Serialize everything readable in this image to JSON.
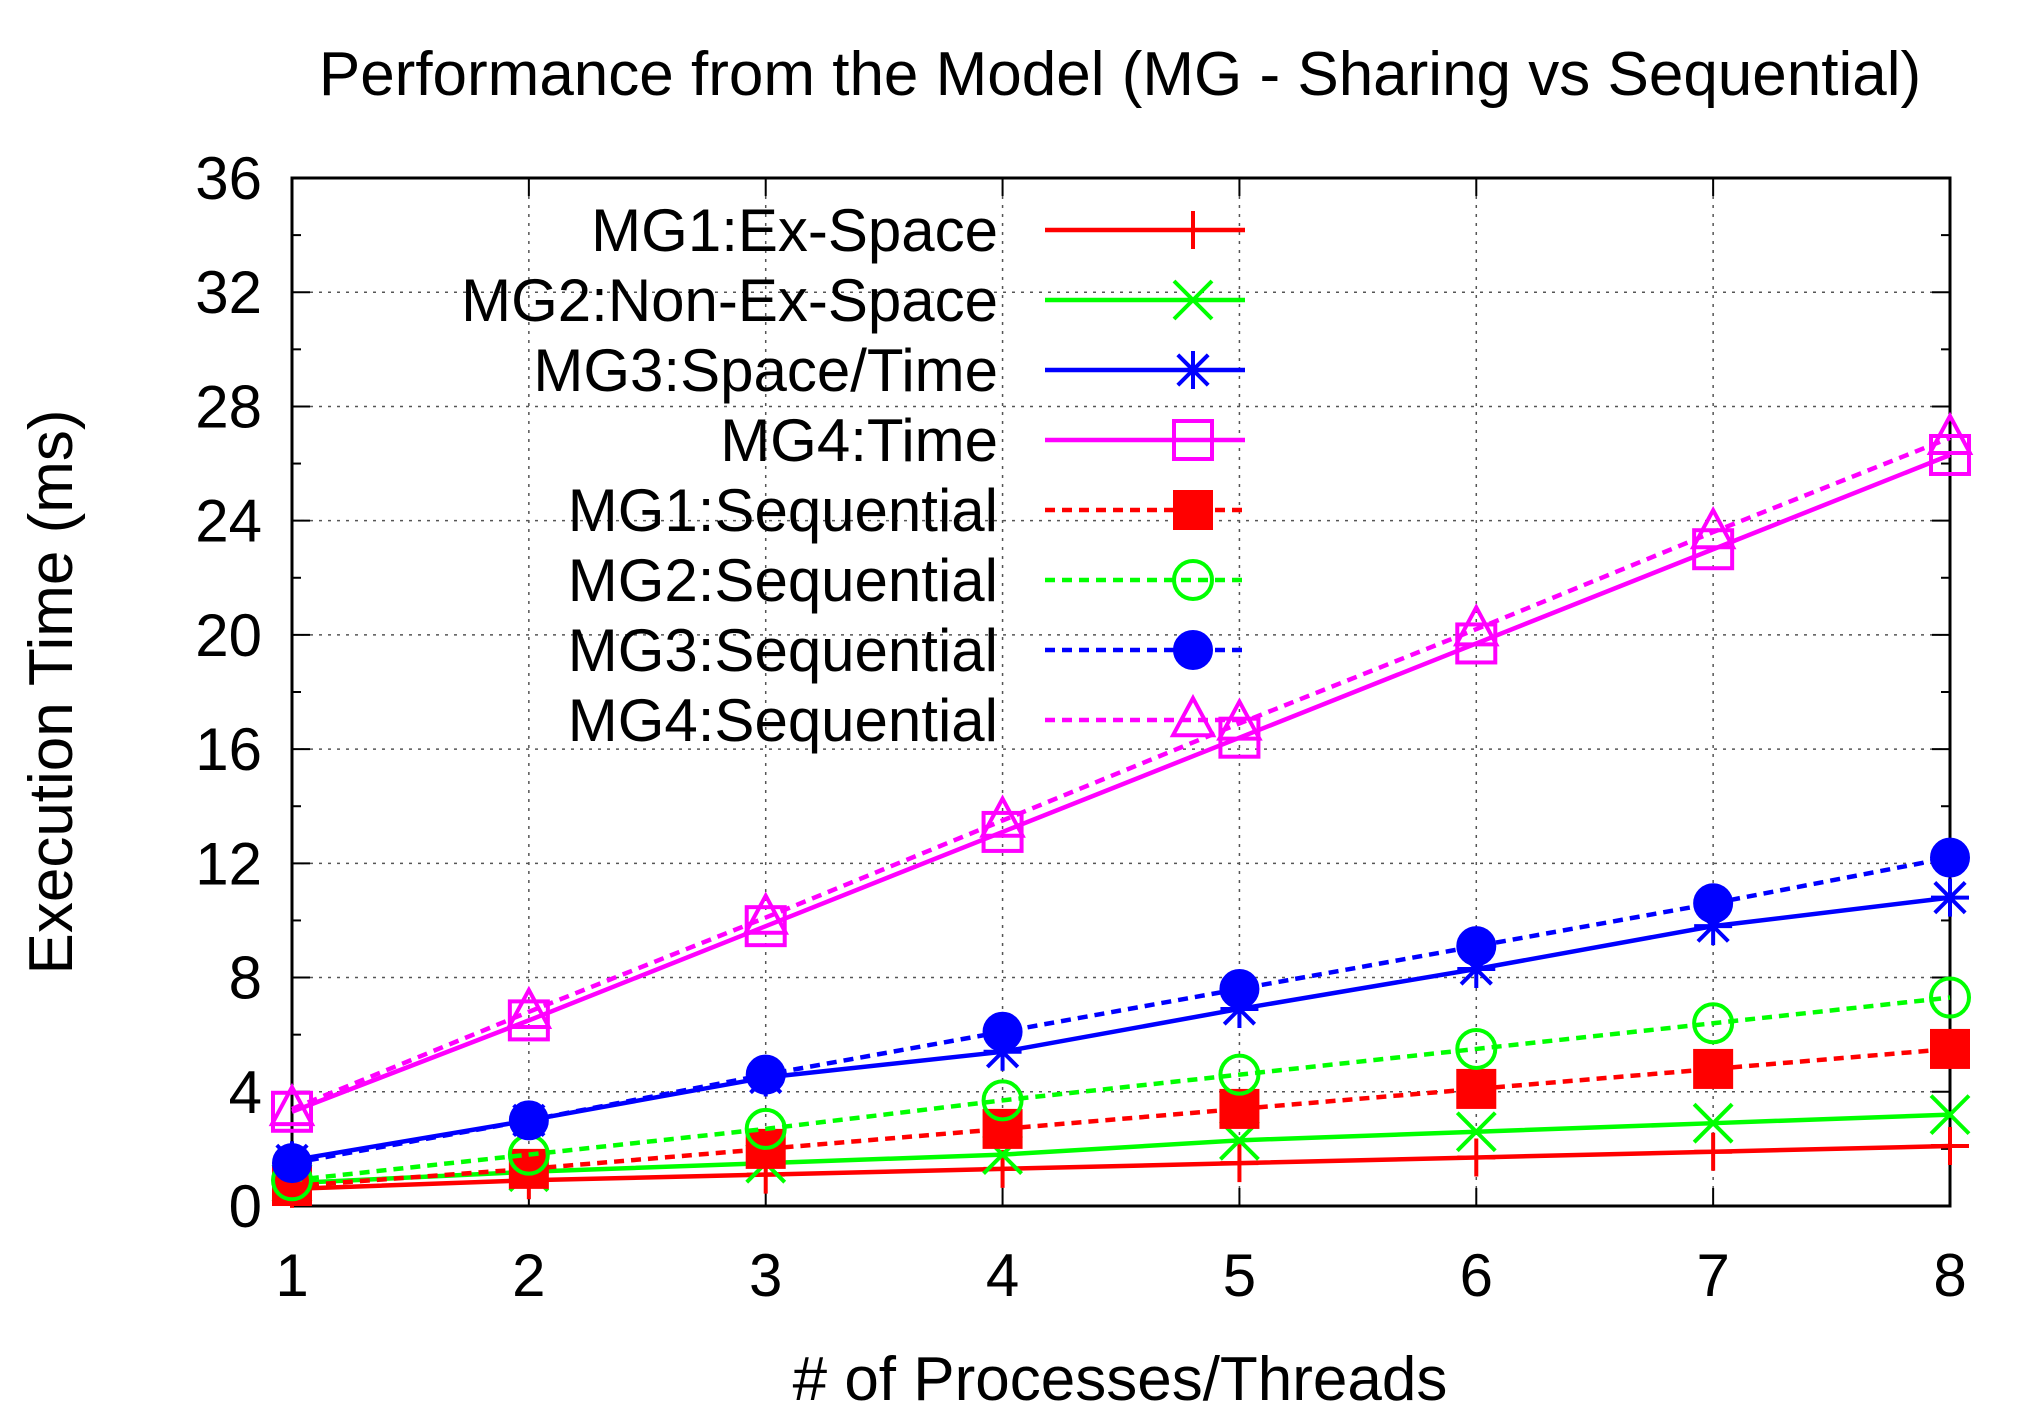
{
  "chart_data": {
    "type": "line",
    "title": "Performance from the Model (MG - Sharing vs Sequential)",
    "xlabel": "# of Processes/Threads",
    "ylabel": "Execution Time (ms)",
    "x": [
      1,
      2,
      3,
      4,
      5,
      6,
      7,
      8
    ],
    "xlim": [
      1,
      8
    ],
    "ylim": [
      0,
      36
    ],
    "xticks": [
      "1",
      "2",
      "3",
      "4",
      "5",
      "6",
      "7",
      "8"
    ],
    "yticks": [
      "0",
      "4",
      "8",
      "12",
      "16",
      "20",
      "24",
      "28",
      "32",
      "36"
    ],
    "grid": true,
    "legend_position": "top-left",
    "series": [
      {
        "name": "MG1:Ex-Space",
        "color": "#ff0000",
        "dash": "solid",
        "marker": "plus",
        "values": [
          0.6,
          0.9,
          1.1,
          1.3,
          1.5,
          1.7,
          1.9,
          2.1
        ]
      },
      {
        "name": "MG2:Non-Ex-Space",
        "color": "#00ff00",
        "dash": "solid",
        "marker": "cross",
        "values": [
          0.8,
          1.2,
          1.5,
          1.8,
          2.3,
          2.6,
          2.9,
          3.2
        ]
      },
      {
        "name": "MG3:Space/Time",
        "color": "#0000ff",
        "dash": "solid",
        "marker": "star",
        "values": [
          1.6,
          3.0,
          4.5,
          5.4,
          6.9,
          8.3,
          9.8,
          10.8
        ]
      },
      {
        "name": "MG4:Time",
        "color": "#ff00ff",
        "dash": "solid",
        "marker": "open-square",
        "values": [
          3.3,
          6.5,
          9.8,
          13.1,
          16.4,
          19.7,
          23.0,
          26.3
        ]
      },
      {
        "name": "MG1:Sequential",
        "color": "#ff0000",
        "dash": "dashed",
        "marker": "filled-square",
        "values": [
          0.7,
          1.3,
          2.0,
          2.7,
          3.4,
          4.1,
          4.8,
          5.5
        ]
      },
      {
        "name": "MG2:Sequential",
        "color": "#00ff00",
        "dash": "dashed",
        "marker": "open-circle",
        "values": [
          0.9,
          1.8,
          2.7,
          3.7,
          4.6,
          5.5,
          6.4,
          7.3
        ]
      },
      {
        "name": "MG3:Sequential",
        "color": "#0000ff",
        "dash": "dashed",
        "marker": "filled-circle",
        "values": [
          1.5,
          3.0,
          4.6,
          6.1,
          7.6,
          9.1,
          10.6,
          12.2
        ]
      },
      {
        "name": "MG4:Sequential",
        "color": "#ff00ff",
        "dash": "dashed",
        "marker": "open-triangle",
        "values": [
          3.4,
          6.8,
          10.1,
          13.5,
          16.9,
          20.2,
          23.6,
          26.9
        ]
      }
    ]
  }
}
